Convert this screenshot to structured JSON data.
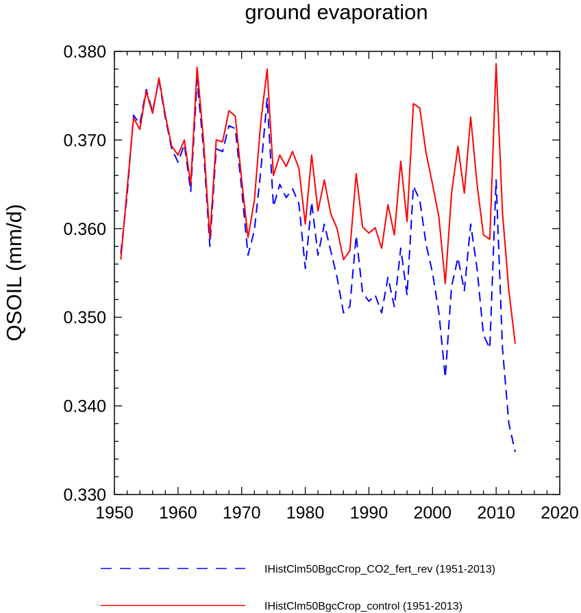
{
  "chart_data": {
    "type": "line",
    "title": "ground evaporation",
    "xlabel": "",
    "ylabel": "QSOIL  (mm/d)",
    "xlim": [
      1950,
      2020
    ],
    "ylim": [
      0.33,
      0.38
    ],
    "x_ticks": [
      "1950",
      "1960",
      "1970",
      "1980",
      "1990",
      "2000",
      "2010",
      "2020"
    ],
    "y_ticks": [
      "0.330",
      "0.340",
      "0.350",
      "0.360",
      "0.370",
      "0.380"
    ],
    "legend_position": "bottom",
    "grid": false,
    "x": [
      1951,
      1952,
      1953,
      1954,
      1955,
      1956,
      1957,
      1958,
      1959,
      1960,
      1961,
      1962,
      1963,
      1964,
      1965,
      1966,
      1967,
      1968,
      1969,
      1970,
      1971,
      1972,
      1973,
      1974,
      1975,
      1976,
      1977,
      1978,
      1979,
      1980,
      1981,
      1982,
      1983,
      1984,
      1985,
      1986,
      1987,
      1988,
      1989,
      1990,
      1991,
      1992,
      1993,
      1994,
      1995,
      1996,
      1997,
      1998,
      1999,
      2000,
      2001,
      2002,
      2003,
      2004,
      2005,
      2006,
      2007,
      2008,
      2009,
      2010,
      2011,
      2012,
      2013
    ],
    "series": [
      {
        "name": "IHistClm50BgcCrop_CO2_fert_rev (1951-2013)",
        "color": "#0000ff",
        "dash": "dashed",
        "values": [
          0.3572,
          0.3638,
          0.3728,
          0.3718,
          0.3757,
          0.3732,
          0.3768,
          0.3725,
          0.369,
          0.3675,
          0.3695,
          0.3642,
          0.3768,
          0.369,
          0.358,
          0.369,
          0.3687,
          0.3716,
          0.3713,
          0.3645,
          0.357,
          0.3598,
          0.3665,
          0.3747,
          0.3625,
          0.365,
          0.3635,
          0.3645,
          0.3628,
          0.3555,
          0.363,
          0.357,
          0.3605,
          0.3575,
          0.3545,
          0.3505,
          0.3512,
          0.3592,
          0.3528,
          0.3518,
          0.3525,
          0.3505,
          0.3545,
          0.3512,
          0.3578,
          0.3525,
          0.3648,
          0.3632,
          0.3582,
          0.355,
          0.3505,
          0.3432,
          0.3535,
          0.3567,
          0.353,
          0.3605,
          0.3555,
          0.348,
          0.3465,
          0.3655,
          0.3465,
          0.338,
          0.3348
        ]
      },
      {
        "name": "IHistClm50BgcCrop_control (1951-2013)",
        "color": "#ff0000",
        "dash": "solid",
        "values": [
          0.3565,
          0.3645,
          0.3725,
          0.3712,
          0.3755,
          0.373,
          0.377,
          0.3728,
          0.3693,
          0.3683,
          0.37,
          0.365,
          0.3782,
          0.37,
          0.359,
          0.37,
          0.3698,
          0.3733,
          0.3727,
          0.3655,
          0.359,
          0.3632,
          0.372,
          0.378,
          0.366,
          0.3683,
          0.367,
          0.3687,
          0.3668,
          0.3605,
          0.3683,
          0.362,
          0.3655,
          0.3617,
          0.36,
          0.3565,
          0.3575,
          0.3662,
          0.3602,
          0.3595,
          0.3601,
          0.3578,
          0.3627,
          0.3593,
          0.3676,
          0.3608,
          0.3741,
          0.3736,
          0.3685,
          0.365,
          0.3613,
          0.3538,
          0.364,
          0.3693,
          0.364,
          0.3726,
          0.365,
          0.3593,
          0.3588,
          0.3786,
          0.3618,
          0.353,
          0.347
        ]
      }
    ]
  }
}
